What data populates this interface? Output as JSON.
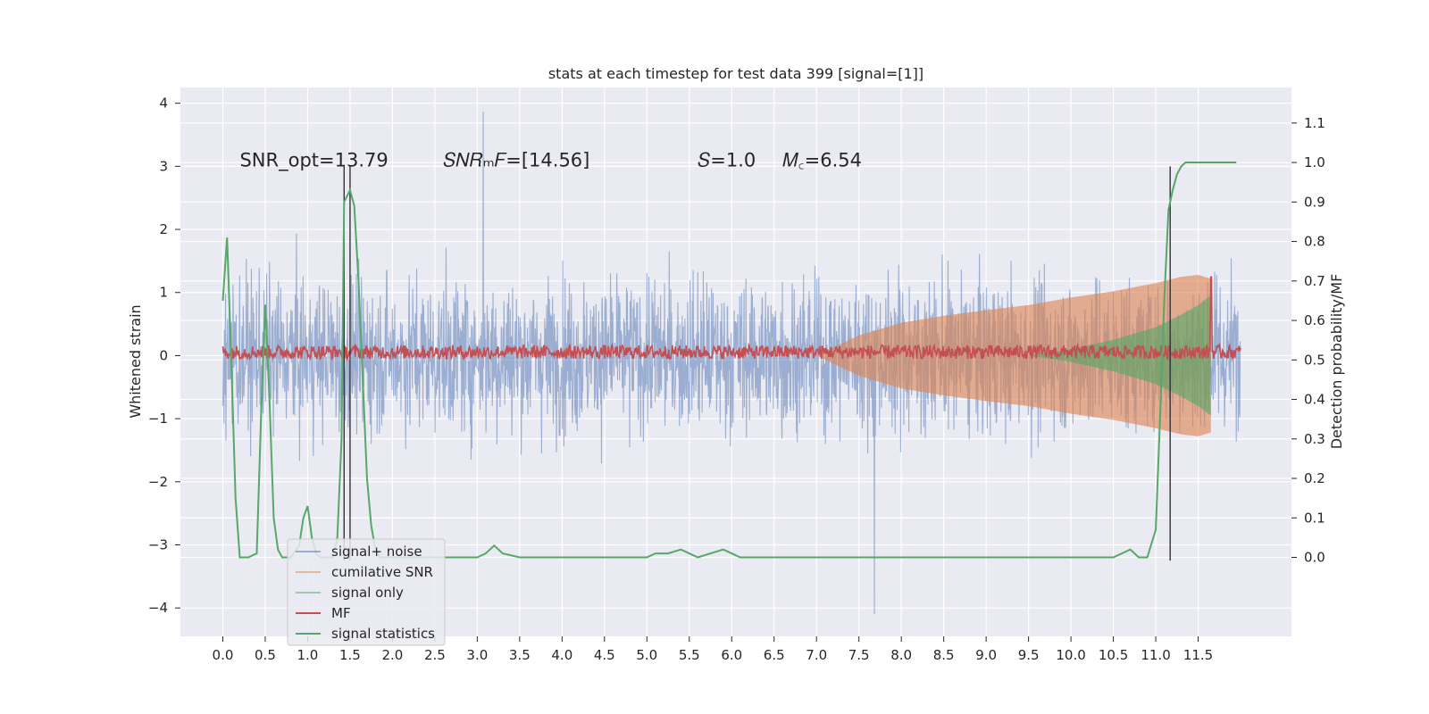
{
  "chart_data": {
    "type": "line",
    "title": "stats at each timestep for test data 399 [signal=[1]]",
    "xlabel": "",
    "ylabel": "Whitened strain",
    "y2label": "Detection probability/MF",
    "xlim": [
      -0.5,
      12.6
    ],
    "ylim": [
      -4.45,
      4.25
    ],
    "y2lim": [
      -0.2,
      1.19
    ],
    "x_ticks": [
      0.0,
      0.5,
      1.0,
      1.5,
      2.0,
      2.5,
      3.0,
      3.5,
      4.0,
      4.5,
      5.0,
      5.5,
      6.0,
      6.5,
      7.0,
      7.5,
      8.0,
      8.5,
      9.0,
      9.5,
      10.0,
      10.5,
      11.0,
      11.5
    ],
    "x_tick_labels": [
      "0.0",
      "0.5",
      "1.0",
      "1.5",
      "2.0",
      "2.5",
      "3.0",
      "3.5",
      "4.0",
      "4.5",
      "5.0",
      "5.5",
      "6.0",
      "6.5",
      "7.0",
      "7.5",
      "8.0",
      "8.5",
      "9.0",
      "9.5",
      "10.0",
      "10.5",
      "11.0",
      "11.5"
    ],
    "y_ticks": [
      -4,
      -3,
      -2,
      -1,
      0,
      1,
      2,
      3,
      4
    ],
    "y_tick_labels": [
      "−4",
      "−3",
      "−2",
      "−1",
      "0",
      "1",
      "2",
      "3",
      "4"
    ],
    "y2_ticks": [
      0.0,
      0.1,
      0.2,
      0.3,
      0.4,
      0.5,
      0.6,
      0.7,
      0.8,
      0.9,
      1.0,
      1.1
    ],
    "y2_tick_labels": [
      "0.0",
      "0.1",
      "0.2",
      "0.3",
      "0.4",
      "0.5",
      "0.6",
      "0.7",
      "0.8",
      "0.9",
      "1.0",
      "1.1"
    ],
    "grid": true,
    "legend_position": "lower-left",
    "annotations": [
      {
        "id": "snr-opt",
        "x": 0.2,
        "y": 3.0,
        "text": "SNR_opt=13.79"
      },
      {
        "id": "snr-mf",
        "x": 2.6,
        "y": 3.0,
        "text": "𝑆𝑁𝑅ₘ𝐹=[14.56]"
      },
      {
        "id": "s-value",
        "x": 5.6,
        "y": 3.0,
        "text": "𝑆=1.0"
      },
      {
        "id": "mc-value",
        "x": 6.6,
        "y": 3.0,
        "text": "𝑀꜀=6.54"
      }
    ],
    "vertical_lines": [
      1.43,
      1.5,
      11.17
    ],
    "vertical_line_range": [
      -3.25,
      3.0
    ],
    "series": [
      {
        "name": "signal+ noise",
        "color": "#4c72b0",
        "opacity": 0.5,
        "kind": "noise",
        "x_range": [
          0.0,
          12.0
        ],
        "envelope": [
          -2.3,
          2.6
        ],
        "extremes": {
          "max": 3.87,
          "min": -4.1
        }
      },
      {
        "name": "cumilative SNR",
        "color": "#dd8452",
        "opacity": 0.5,
        "kind": "envelope",
        "x": [
          7.0,
          7.5,
          8.0,
          8.5,
          9.0,
          9.5,
          10.0,
          10.5,
          11.0,
          11.3,
          11.5,
          11.65
        ],
        "upper": [
          0.0,
          0.32,
          0.52,
          0.63,
          0.72,
          0.8,
          0.92,
          1.02,
          1.15,
          1.25,
          1.28,
          1.22
        ],
        "lower": [
          0.0,
          -0.32,
          -0.52,
          -0.63,
          -0.72,
          -0.8,
          -0.92,
          -1.02,
          -1.15,
          -1.25,
          -1.28,
          -1.22
        ]
      },
      {
        "name": "signal only",
        "color": "#55a868",
        "opacity": 0.5,
        "kind": "envelope",
        "x": [
          9.5,
          10.0,
          10.5,
          11.0,
          11.3,
          11.5,
          11.65
        ],
        "upper": [
          0.0,
          0.1,
          0.25,
          0.45,
          0.65,
          0.8,
          0.95
        ],
        "lower": [
          0.0,
          -0.1,
          -0.25,
          -0.45,
          -0.65,
          -0.8,
          -0.95
        ]
      },
      {
        "name": "MF",
        "color": "#c44e52",
        "opacity": 1.0,
        "kind": "mf",
        "baseline": 0.52,
        "spike": {
          "x": 11.65,
          "value": 0.71
        }
      },
      {
        "name": "signal statistics",
        "color": "#55a868",
        "opacity": 1.0,
        "kind": "line",
        "axis": "right",
        "x": [
          0.0,
          0.05,
          0.1,
          0.15,
          0.2,
          0.3,
          0.4,
          0.45,
          0.5,
          0.55,
          0.6,
          0.65,
          0.7,
          0.8,
          0.9,
          0.95,
          1.0,
          1.05,
          1.1,
          1.15,
          1.2,
          1.3,
          1.35,
          1.4,
          1.43,
          1.5,
          1.55,
          1.6,
          1.65,
          1.7,
          1.75,
          1.8,
          1.85,
          1.9,
          2.0,
          2.5,
          3.0,
          3.1,
          3.2,
          3.3,
          3.5,
          4.0,
          4.5,
          5.0,
          5.1,
          5.25,
          5.4,
          5.5,
          5.6,
          5.75,
          5.9,
          6.0,
          6.1,
          6.3,
          6.5,
          6.7,
          7.0,
          7.25,
          7.5,
          8.0,
          8.5,
          8.8,
          9.0,
          9.5,
          10.0,
          10.5,
          10.7,
          10.8,
          10.9,
          11.0,
          11.05,
          11.1,
          11.15,
          11.2,
          11.25,
          11.3,
          11.35,
          11.5,
          11.7,
          11.95
        ],
        "y": [
          0.65,
          0.81,
          0.5,
          0.15,
          0.0,
          0.0,
          0.01,
          0.35,
          0.64,
          0.4,
          0.1,
          0.02,
          0.0,
          0.0,
          0.03,
          0.1,
          0.13,
          0.05,
          0.01,
          0.0,
          0.0,
          0.0,
          0.05,
          0.3,
          0.9,
          0.93,
          0.89,
          0.7,
          0.45,
          0.2,
          0.08,
          0.02,
          0.0,
          0.0,
          0.0,
          0.0,
          0.0,
          0.01,
          0.03,
          0.01,
          0.0,
          0.0,
          0.0,
          0.0,
          0.01,
          0.01,
          0.02,
          0.01,
          0.0,
          0.01,
          0.02,
          0.01,
          0.0,
          0.0,
          0.0,
          0.0,
          0.0,
          0.0,
          0.0,
          0.0,
          0.0,
          0.0,
          0.0,
          0.0,
          0.0,
          0.0,
          0.02,
          0.0,
          0.0,
          0.07,
          0.35,
          0.65,
          0.88,
          0.93,
          0.97,
          0.99,
          1.0,
          1.0,
          1.0,
          1.0
        ]
      }
    ]
  }
}
